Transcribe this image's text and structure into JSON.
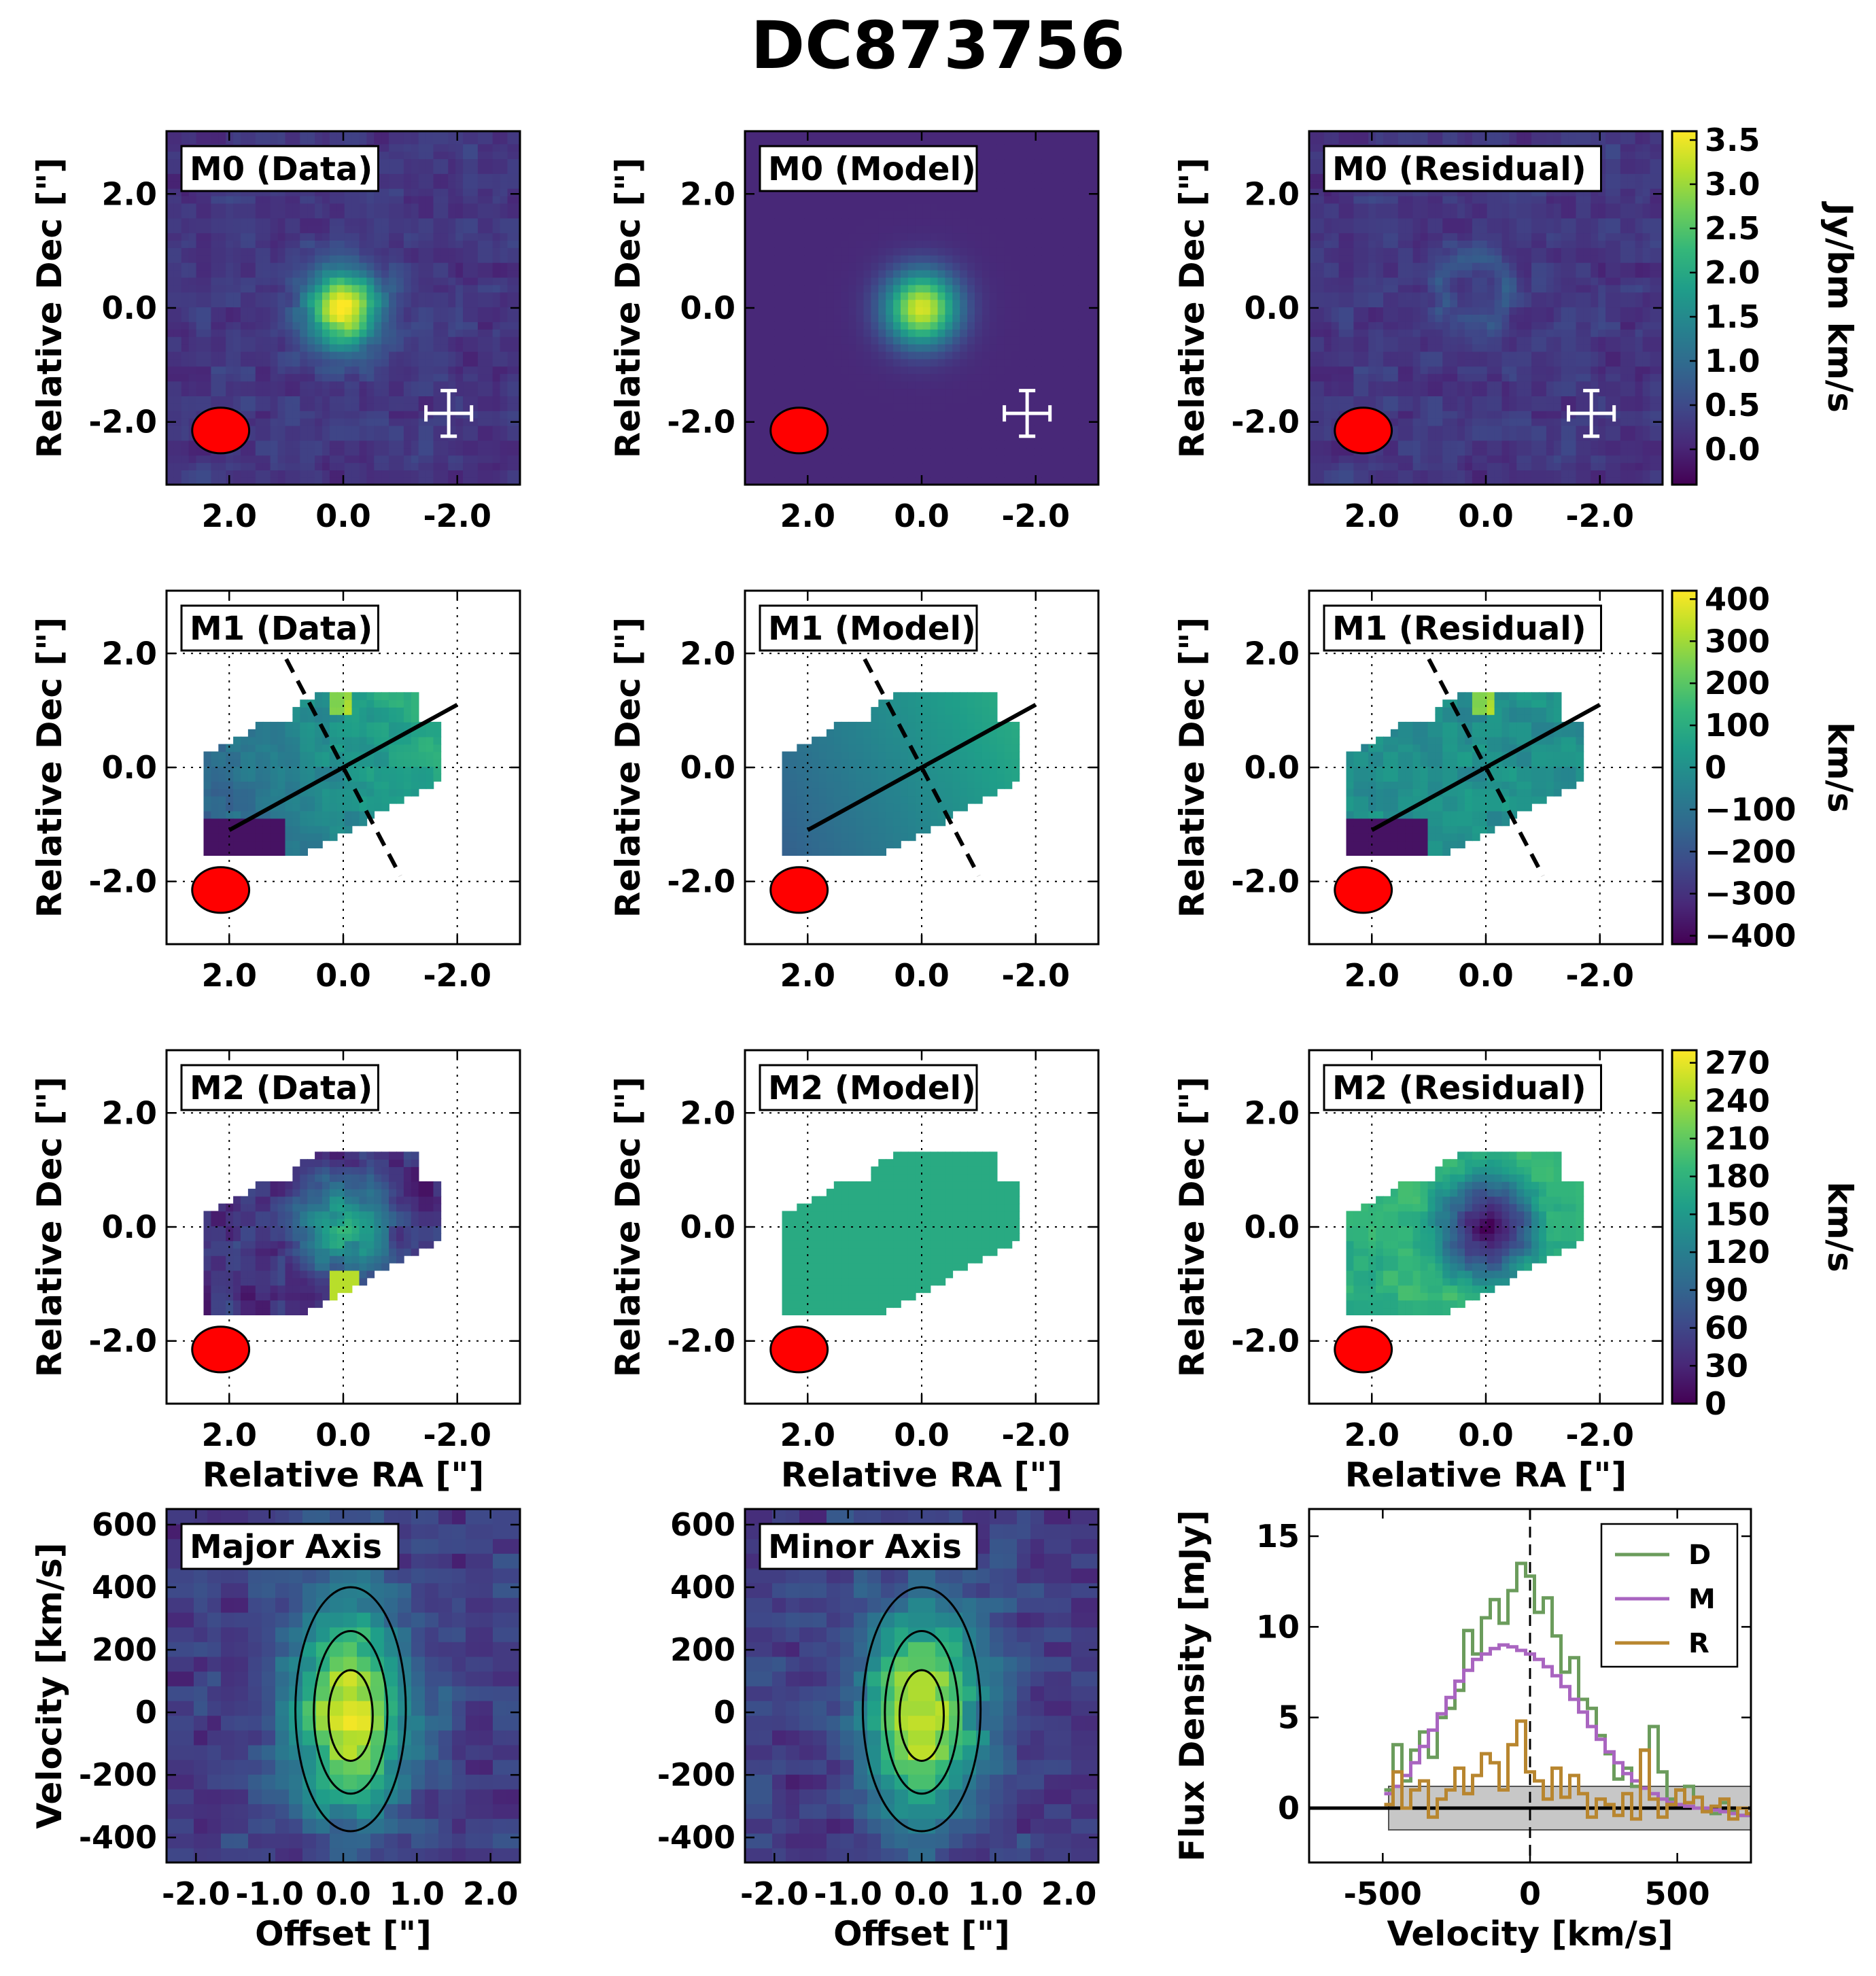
{
  "figure": {
    "title": "DC873756",
    "labels": {
      "ra": "Relative RA [\"]",
      "dec": "Relative Dec [\"]",
      "offset": "Offset [\"]",
      "velocity": "Velocity [km/s]",
      "flux": "Flux Density [mJy]"
    },
    "colors": {
      "beam": "#ff0000",
      "viridis": [
        "#440154",
        "#482878",
        "#3e4989",
        "#31688e",
        "#26828e",
        "#1f9e89",
        "#35b779",
        "#6ece58",
        "#b5de2b",
        "#fde725"
      ],
      "panel_border": "#000000"
    }
  },
  "chart_data": [
    {
      "type": "heatmap",
      "id": "moment0",
      "row_labels": [
        "M0 (Data)",
        "M0 (Model)",
        "M0 (Residual)"
      ],
      "xlabel": "",
      "ylabel": "Relative Dec [\"]",
      "xlim": [
        3.1,
        -3.1
      ],
      "ylim": [
        -3.1,
        3.1
      ],
      "xticks": [
        2.0,
        0.0,
        -2.0
      ],
      "xtick_labels": [
        "2.0",
        "0.0",
        "-2.0"
      ],
      "yticks": [
        2.0,
        0.0,
        -2.0
      ],
      "ytick_labels": [
        "2.0",
        "0.0",
        "-2.0"
      ],
      "peak_position": [
        0.0,
        0.0
      ],
      "colorbar": {
        "label": "Jy/bm km/s",
        "range": [
          -0.4,
          3.6
        ],
        "ticks": [
          3.5,
          3.0,
          2.5,
          2.0,
          1.5,
          1.0,
          0.5,
          0.0
        ],
        "tick_labels": [
          "3.5",
          "3.0",
          "2.5",
          "2.0",
          "1.5",
          "1.0",
          "0.5",
          "0.0"
        ]
      },
      "beam": {
        "center": [
          2.15,
          -2.15
        ],
        "major_arcsec": 1.0,
        "minor_arcsec": 0.8
      },
      "scale_marker_center": [
        -1.85,
        -1.85
      ]
    },
    {
      "type": "heatmap",
      "id": "moment1",
      "row_labels": [
        "M1 (Data)",
        "M1 (Model)",
        "M1 (Residual)"
      ],
      "xlabel": "",
      "ylabel": "Relative Dec [\"]",
      "xlim": [
        3.1,
        -3.1
      ],
      "ylim": [
        -3.1,
        3.1
      ],
      "xticks": [
        2.0,
        0.0,
        -2.0
      ],
      "xtick_labels": [
        "2.0",
        "0.0",
        "-2.0"
      ],
      "yticks": [
        2.0,
        0.0,
        -2.0
      ],
      "ytick_labels": [
        "2.0",
        "0.0",
        "-2.0"
      ],
      "grid": "dotted",
      "major_axis_line": [
        [
          2.0,
          -1.1
        ],
        [
          -2.0,
          1.1
        ]
      ],
      "minor_axis_line": [
        [
          1.0,
          1.9
        ],
        [
          -1.0,
          -1.9
        ]
      ],
      "colorbar": {
        "label": "km/s",
        "range": [
          -420,
          420
        ],
        "ticks": [
          400,
          300,
          200,
          100,
          0,
          -100,
          -200,
          -300,
          -400
        ],
        "tick_labels": [
          "400",
          "300",
          "200",
          "100",
          "0",
          "−100",
          "−200",
          "−300",
          "−400"
        ]
      },
      "beam": {
        "center": [
          2.15,
          -2.15
        ],
        "major_arcsec": 1.0,
        "minor_arcsec": 0.8
      }
    },
    {
      "type": "heatmap",
      "id": "moment2",
      "row_labels": [
        "M2 (Data)",
        "M2 (Model)",
        "M2 (Residual)"
      ],
      "xlabel": "Relative RA [\"]",
      "ylabel": "Relative Dec [\"]",
      "xlim": [
        3.1,
        -3.1
      ],
      "ylim": [
        -3.1,
        3.1
      ],
      "xticks": [
        2.0,
        0.0,
        -2.0
      ],
      "xtick_labels": [
        "2.0",
        "0.0",
        "-2.0"
      ],
      "yticks": [
        2.0,
        0.0,
        -2.0
      ],
      "ytick_labels": [
        "2.0",
        "0.0",
        "-2.0"
      ],
      "grid": "dotted",
      "model_dispersion": 170,
      "colorbar": {
        "label": "km/s",
        "range": [
          0,
          280
        ],
        "ticks": [
          270,
          240,
          210,
          180,
          150,
          120,
          90,
          60,
          30,
          0
        ],
        "tick_labels": [
          "270",
          "240",
          "210",
          "180",
          "150",
          "120",
          "90",
          "60",
          "30",
          "0"
        ]
      },
      "beam": {
        "center": [
          2.15,
          -2.15
        ],
        "major_arcsec": 1.0,
        "minor_arcsec": 0.8
      }
    },
    {
      "type": "heatmap",
      "id": "pv_major",
      "label": "Major Axis",
      "xlabel": "Offset [\"]",
      "ylabel": "Velocity [km/s]",
      "xlim": [
        -2.4,
        2.4
      ],
      "ylim": [
        -480,
        650
      ],
      "xticks": [
        -2.0,
        -1.0,
        0.0,
        1.0,
        2.0
      ],
      "xtick_labels": [
        "-2.0",
        "-1.0",
        "0.0",
        "1.0",
        "2.0"
      ],
      "yticks": [
        600,
        400,
        200,
        0,
        -200,
        -400
      ],
      "ytick_labels": [
        "600",
        "400",
        "200",
        "0",
        "-200",
        "-400"
      ],
      "contours": [
        {
          "center": [
            0.1,
            10
          ],
          "half_width": 0.75,
          "half_height": 390
        },
        {
          "center": [
            0.1,
            0
          ],
          "half_width": 0.5,
          "half_height": 260
        },
        {
          "center": [
            0.1,
            -10
          ],
          "half_width": 0.3,
          "half_height": 145
        }
      ]
    },
    {
      "type": "heatmap",
      "id": "pv_minor",
      "label": "Minor Axis",
      "xlabel": "Offset [\"]",
      "ylabel": "",
      "xlim": [
        -2.4,
        2.4
      ],
      "ylim": [
        -480,
        650
      ],
      "xticks": [
        -2.0,
        -1.0,
        0.0,
        1.0,
        2.0
      ],
      "xtick_labels": [
        "-2.0",
        "-1.0",
        "0.0",
        "1.0",
        "2.0"
      ],
      "yticks": [
        600,
        400,
        200,
        0,
        -200,
        -400
      ],
      "ytick_labels": [
        "600",
        "400",
        "200",
        "0",
        "-200",
        "-400"
      ],
      "contours": [
        {
          "center": [
            0.0,
            10
          ],
          "half_width": 0.8,
          "half_height": 390
        },
        {
          "center": [
            0.0,
            0
          ],
          "half_width": 0.5,
          "half_height": 260
        },
        {
          "center": [
            0.0,
            -10
          ],
          "half_width": 0.3,
          "half_height": 145
        }
      ]
    },
    {
      "type": "line",
      "id": "spectrum",
      "xlabel": "Velocity [km/s]",
      "ylabel": "Flux Density [mJy]",
      "xlim": [
        -750,
        750
      ],
      "ylim": [
        -3,
        16.5
      ],
      "xticks": [
        -500,
        0,
        500
      ],
      "xtick_labels": [
        "-500",
        "0",
        "500"
      ],
      "yticks": [
        15,
        10,
        5,
        0
      ],
      "ytick_labels": [
        "15",
        "10",
        "5",
        "0"
      ],
      "legend_position": "top-right",
      "noise_band": {
        "x": [
          -480,
          750
        ],
        "y": [
          -1.2,
          1.2
        ]
      },
      "zero_line": 0,
      "vline": 0,
      "x": [
        -480,
        -450,
        -420,
        -390,
        -360,
        -330,
        -300,
        -270,
        -240,
        -210,
        -180,
        -150,
        -120,
        -90,
        -60,
        -30,
        0,
        30,
        60,
        90,
        120,
        150,
        180,
        210,
        240,
        270,
        300,
        330,
        360,
        390,
        420,
        450,
        480,
        510,
        540,
        570,
        600,
        630,
        660,
        690,
        720,
        750
      ],
      "series": [
        {
          "name": "D",
          "color": "#6b9c5c",
          "values": [
            1.0,
            3.5,
            1.5,
            3.2,
            4.2,
            2.8,
            5.0,
            5.5,
            6.5,
            9.8,
            8.5,
            10.5,
            11.5,
            10.2,
            12.0,
            13.5,
            12.8,
            10.8,
            11.6,
            9.5,
            7.5,
            8.3,
            6.0,
            5.5,
            4.0,
            3.0,
            1.6,
            2.2,
            1.2,
            3.2,
            4.5,
            2.0,
            0.5,
            1.0,
            1.2,
            0.6,
            -0.1,
            -0.3,
            0.3,
            -0.2,
            -0.4,
            -0.4
          ]
        },
        {
          "name": "M",
          "color": "#a965c0",
          "values": [
            0.8,
            1.2,
            1.8,
            2.5,
            3.4,
            4.3,
            5.2,
            6.1,
            7.0,
            7.6,
            8.2,
            8.5,
            8.8,
            9.0,
            8.9,
            8.7,
            8.5,
            8.2,
            7.8,
            7.3,
            6.7,
            6.0,
            5.3,
            4.5,
            3.8,
            3.1,
            2.5,
            1.9,
            1.5,
            1.1,
            0.8,
            0.5,
            0.3,
            0.2,
            0.1,
            0.0,
            0.0,
            -0.1,
            -0.2,
            -0.3,
            -0.4,
            -0.4
          ]
        },
        {
          "name": "R",
          "color": "#b8862f",
          "values": [
            0.2,
            2.0,
            0.0,
            1.0,
            1.5,
            -0.5,
            0.5,
            1.0,
            2.2,
            0.8,
            1.8,
            3.0,
            2.5,
            1.0,
            3.5,
            4.8,
            2.0,
            1.5,
            0.5,
            2.2,
            0.6,
            1.8,
            0.8,
            -0.5,
            0.5,
            0.2,
            -0.4,
            0.8,
            -0.6,
            3.2,
            0.5,
            -0.5,
            0.2,
            1.0,
            0.3,
            0.6,
            -0.2,
            0.1,
            0.5,
            -0.6,
            0.0,
            -0.3
          ]
        }
      ]
    }
  ]
}
